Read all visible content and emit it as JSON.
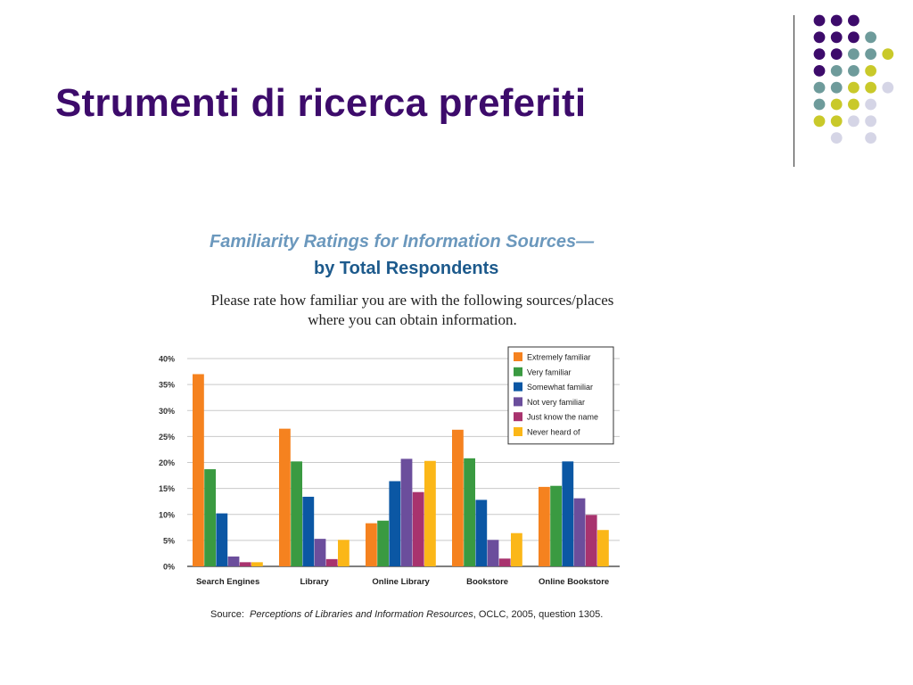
{
  "slide": {
    "title": "Strumenti di ricerca preferiti",
    "title_color": "#3d0b6b"
  },
  "decoration": {
    "dot_colors": {
      "purple": "#3d0b6b",
      "teal": "#6e9b9b",
      "yellow": "#c9c92a",
      "lavender": "#d5d5e6"
    }
  },
  "chart_data": {
    "type": "bar",
    "title": "Familiarity Ratings for Information Sources—",
    "subtitle": "by Total Respondents",
    "question_line1": "Please rate how familiar you are with the following sources/places",
    "question_line2": "where you can obtain information.",
    "categories": [
      "Search Engines",
      "Library",
      "Online Library",
      "Bookstore",
      "Online Bookstore"
    ],
    "series": [
      {
        "name": "Extremely familiar",
        "color": "#f5821f",
        "values": [
          37,
          26.5,
          8.3,
          26.3,
          15.3
        ]
      },
      {
        "name": "Very familiar",
        "color": "#3a9a41",
        "values": [
          18.7,
          20.2,
          8.8,
          20.8,
          15.5
        ]
      },
      {
        "name": "Somewhat familiar",
        "color": "#0b57a4",
        "values": [
          10.2,
          13.4,
          16.4,
          12.8,
          20.2
        ]
      },
      {
        "name": "Not very familiar",
        "color": "#6b4e9c",
        "values": [
          1.9,
          5.3,
          20.7,
          5.1,
          13.1
        ]
      },
      {
        "name": "Just know the name",
        "color": "#a8336e",
        "values": [
          0.8,
          1.4,
          14.3,
          1.5,
          9.9
        ]
      },
      {
        "name": "Never heard of",
        "color": "#fbb718",
        "values": [
          0.8,
          5.1,
          20.3,
          6.4,
          7
        ]
      }
    ],
    "y_ticks": [
      "0%",
      "5%",
      "10%",
      "15%",
      "20%",
      "25%",
      "30%",
      "35%",
      "40%"
    ],
    "ylim": [
      0,
      40
    ],
    "y_unit": "%",
    "grid": true,
    "legend_position": "top-right"
  },
  "source": {
    "prefix": "Source:",
    "title": "Perceptions of Libraries and Information Resources",
    "suffix": ", OCLC, 2005, question 1305."
  }
}
